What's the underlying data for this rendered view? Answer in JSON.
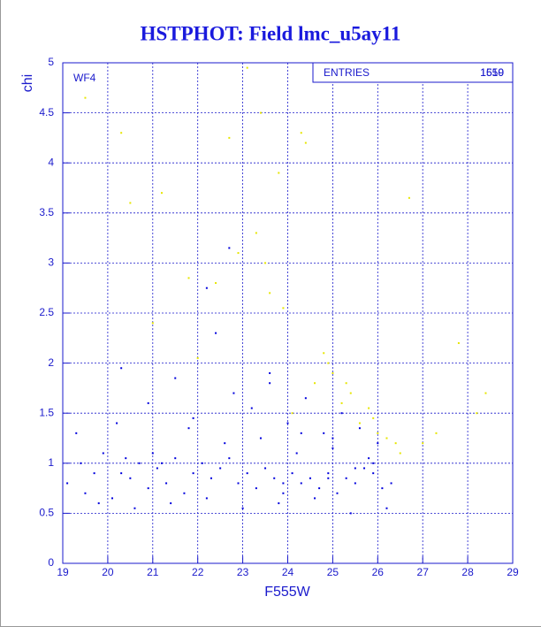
{
  "chart_data": {
    "type": "scatter",
    "title": "HSTPHOT: Field lmc_u5ay11",
    "x_label": "F555W",
    "y_label": "chi",
    "annotation": "WF4",
    "stats": {
      "label": "ENTRIES",
      "values": [
        1510,
        1659
      ]
    },
    "xlim": [
      19,
      29
    ],
    "xticks": [
      19,
      20,
      21,
      22,
      23,
      24,
      25,
      26,
      27,
      28,
      29
    ],
    "ylim": [
      0,
      5
    ],
    "yticks": [
      0,
      0.5,
      1,
      1.5,
      2,
      2.5,
      3,
      3.5,
      4,
      4.5,
      5
    ],
    "grid": true,
    "series": [
      {
        "color": "#0000dd",
        "x": [
          19.1,
          19.3,
          19.5,
          19.7,
          19.9,
          20.1,
          20.3,
          20.5,
          20.7,
          20.9,
          21.1,
          21.3,
          21.5,
          21.7,
          21.9,
          22.1,
          22.3,
          22.5,
          22.7,
          22.9,
          23.1,
          23.3,
          23.5,
          23.7,
          23.9,
          24.1,
          24.3,
          24.5,
          24.7,
          24.9,
          25.1,
          25.3,
          25.5,
          25.7,
          25.9,
          26.1,
          26.3,
          19.4,
          19.8,
          20.2,
          20.6,
          21.0,
          21.4,
          21.8,
          22.2,
          22.6,
          23.0,
          23.4,
          23.8,
          24.2,
          24.6,
          25.0,
          25.4,
          25.8,
          26.2,
          20.3,
          20.9,
          21.5,
          21.9,
          22.4,
          22.8,
          23.2,
          23.6,
          24.0,
          24.4,
          24.8,
          25.2,
          25.6,
          26.0,
          22.2,
          22.7,
          23.6,
          24.3,
          25.0,
          21.2,
          20.4,
          25.9,
          25.5,
          24.9,
          23.9
        ],
        "values": [
          0.8,
          1.3,
          0.7,
          0.9,
          1.1,
          0.65,
          0.9,
          0.85,
          1.0,
          0.75,
          0.95,
          0.8,
          1.05,
          0.7,
          0.9,
          1.0,
          0.85,
          0.95,
          1.05,
          0.8,
          0.9,
          0.75,
          0.95,
          0.85,
          0.7,
          0.9,
          0.8,
          0.85,
          0.75,
          0.9,
          0.7,
          0.85,
          0.8,
          0.95,
          0.9,
          0.75,
          0.8,
          1.0,
          0.6,
          1.4,
          0.55,
          1.1,
          0.6,
          1.35,
          0.65,
          1.2,
          0.55,
          1.25,
          0.6,
          1.1,
          0.65,
          1.15,
          0.5,
          1.05,
          0.55,
          1.95,
          1.6,
          1.85,
          1.45,
          2.3,
          1.7,
          1.55,
          1.9,
          1.4,
          1.65,
          1.3,
          1.5,
          1.35,
          1.2,
          2.75,
          3.15,
          1.8,
          1.3,
          1.25,
          1.0,
          1.05,
          1.0,
          0.95,
          0.85,
          0.8
        ]
      },
      {
        "color": "#e6e600",
        "x": [
          19.5,
          20.3,
          20.5,
          21.0,
          21.2,
          21.8,
          22.0,
          22.4,
          22.9,
          23.1,
          23.3,
          23.4,
          23.6,
          23.9,
          24.3,
          24.4,
          24.6,
          24.8,
          25.0,
          25.2,
          25.4,
          25.6,
          25.8,
          26.0,
          26.2,
          26.5,
          26.7,
          27.0,
          27.3,
          27.8,
          28.2,
          28.4,
          23.8,
          24.1,
          25.3,
          25.9,
          26.4,
          22.7,
          23.5,
          24.9
        ],
        "values": [
          4.65,
          4.3,
          3.6,
          2.4,
          3.7,
          2.85,
          2.05,
          2.8,
          3.1,
          4.95,
          3.3,
          4.5,
          2.7,
          2.55,
          4.3,
          4.2,
          1.8,
          2.1,
          1.9,
          1.6,
          1.7,
          1.4,
          1.55,
          1.3,
          1.25,
          1.1,
          3.65,
          1.2,
          1.3,
          2.2,
          1.5,
          1.7,
          3.9,
          1.5,
          1.8,
          1.45,
          1.2,
          4.25,
          3.0,
          2.0
        ]
      }
    ]
  }
}
